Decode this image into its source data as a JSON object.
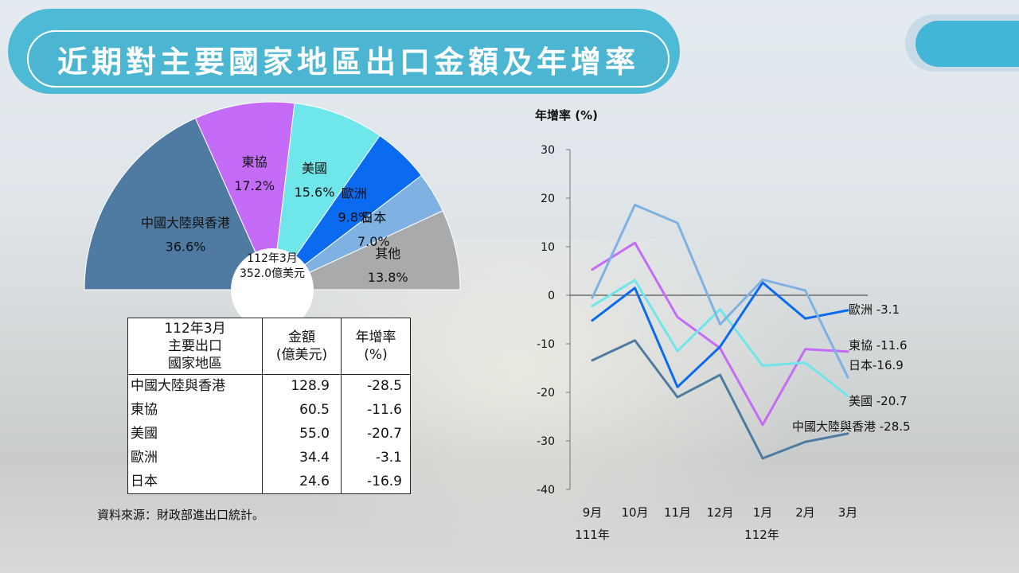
{
  "title": "近期對主要國家地區出口金額及年增率",
  "pie": {
    "center_label_1": "112年3月",
    "center_label_2": "352.0億美元",
    "slices": [
      {
        "label": "中國大陸與香港",
        "percent": "36.6%",
        "value": 36.6,
        "color": "#4f7aa2"
      },
      {
        "label": "東協",
        "percent": "17.2%",
        "value": 17.2,
        "color": "#c46cf7"
      },
      {
        "label": "美國",
        "percent": "15.6%",
        "value": 15.6,
        "color": "#6fe6ea"
      },
      {
        "label": "歐洲",
        "percent": "9.8%",
        "value": 9.8,
        "color": "#0b6bf0"
      },
      {
        "label": "日本",
        "percent": "7.0%",
        "value": 7.0,
        "color": "#7fb2e2"
      },
      {
        "label": "其他",
        "percent": "13.8%",
        "value": 13.8,
        "color": "#a9aaac"
      }
    ]
  },
  "table": {
    "headers": [
      "112年3月\n主要出口\n國家地區",
      "金額\n(億美元)",
      "年增率\n(%)"
    ],
    "rows": [
      [
        "中國大陸與香港",
        "128.9",
        "-28.5"
      ],
      [
        "東協",
        "60.5",
        "-11.6"
      ],
      [
        "美國",
        "55.0",
        "-20.7"
      ],
      [
        "歐洲",
        "34.4",
        "-3.1"
      ],
      [
        "日本",
        "24.6",
        "-16.9"
      ]
    ]
  },
  "source": "資料來源：財政部進出口統計。",
  "chart_data": {
    "type": "line",
    "ylabel": "年增率 (%)",
    "ylim": [
      -40,
      30
    ],
    "yticks": [
      "30",
      "20",
      "10",
      "0",
      "-10",
      "-20",
      "-30",
      "-40"
    ],
    "categories": [
      "9月",
      "10月",
      "11月",
      "12月",
      "1月",
      "2月",
      "3月"
    ],
    "year_labels": [
      "111年",
      "112年"
    ],
    "series": [
      {
        "name": "中國大陸與香港",
        "end_label": "中國大陸與香港 -28.5",
        "color": "#4f7aa2",
        "values": [
          -13.4,
          -9.3,
          -21.0,
          -16.4,
          -33.6,
          -30.2,
          -28.5
        ]
      },
      {
        "name": "東協",
        "end_label": "東協 -11.6",
        "color": "#c46cf7",
        "values": [
          5.3,
          10.8,
          -4.5,
          -10.9,
          -26.7,
          -11.1,
          -11.6
        ]
      },
      {
        "name": "美國",
        "end_label": "美國 -20.7",
        "color": "#6fe6ea",
        "values": [
          -2.2,
          3.1,
          -11.5,
          -2.9,
          -14.5,
          -13.9,
          -20.7
        ]
      },
      {
        "name": "歐洲",
        "end_label": "歐洲 -3.1",
        "color": "#0b6bf0",
        "values": [
          -5.2,
          1.5,
          -18.9,
          -10.6,
          2.6,
          -4.8,
          -3.1
        ]
      },
      {
        "name": "日本",
        "end_label": "日本-16.9",
        "color": "#7fb2e2",
        "values": [
          -0.5,
          18.6,
          14.9,
          -6.0,
          3.2,
          1.0,
          -16.9
        ]
      }
    ]
  }
}
